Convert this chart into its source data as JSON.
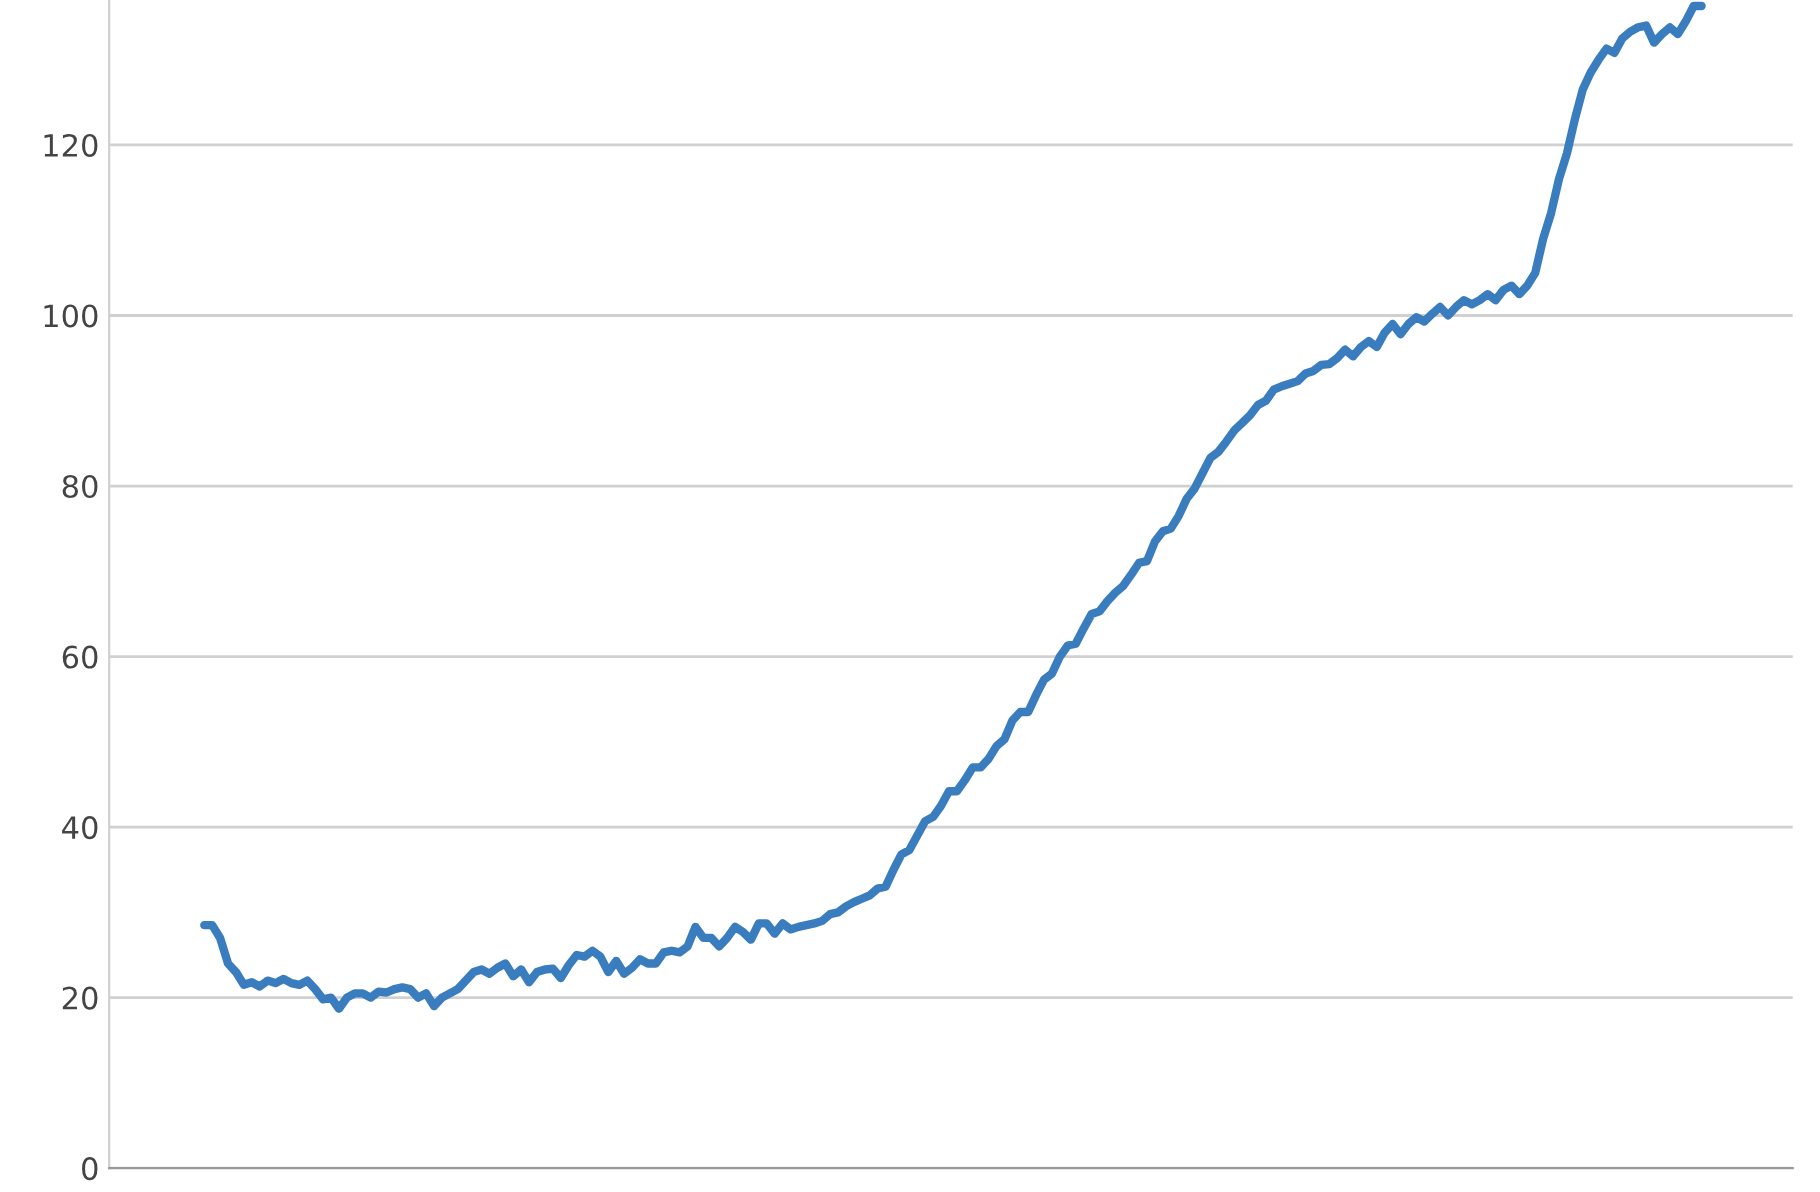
{
  "chart_data": {
    "type": "line",
    "categories": [
      null,
      null,
      null,
      null,
      null,
      null,
      null,
      null,
      null,
      null,
      null,
      null,
      null,
      null,
      null,
      null,
      null,
      null,
      null,
      null,
      null,
      null,
      null,
      null,
      null,
      null,
      null,
      null,
      null,
      null,
      null,
      null,
      null,
      null,
      null,
      null,
      null,
      null,
      null,
      null,
      null,
      null,
      null,
      null,
      null,
      null,
      null,
      null,
      null,
      null,
      null,
      null,
      null,
      null,
      null,
      null,
      null,
      null,
      null,
      null,
      null,
      null,
      null,
      null,
      null,
      null,
      null,
      null,
      null,
      null,
      null,
      null,
      null,
      null,
      null,
      null,
      null,
      null,
      null,
      null,
      null,
      null,
      null,
      null,
      null,
      null,
      null,
      null,
      null,
      null,
      null,
      null,
      null,
      null,
      null,
      null,
      null,
      null,
      null,
      null,
      null,
      null,
      null,
      null,
      null,
      null,
      null,
      null,
      null,
      null,
      null,
      null,
      null,
      null,
      null,
      null,
      null,
      null,
      null,
      null,
      null,
      null,
      null,
      null,
      null,
      null,
      null,
      null,
      null,
      null,
      null,
      null,
      null,
      null,
      null,
      null,
      null,
      null,
      null,
      null,
      null,
      null,
      null,
      null,
      null,
      null,
      null,
      null,
      null,
      null,
      null,
      null,
      null,
      null,
      null,
      null,
      null,
      null,
      null,
      null,
      null,
      null,
      null,
      null,
      null,
      null,
      null,
      null,
      null,
      null,
      null,
      null,
      null,
      null,
      null,
      null,
      null,
      null,
      null,
      null,
      null,
      null,
      null,
      null,
      null,
      null,
      null,
      null,
      null,
      null
    ],
    "series": [
      {
        "color": "#3a7dbf",
        "values": [
          28.5,
          28.5,
          27,
          24,
          23,
          21.5,
          21.8,
          21.3,
          22,
          21.7,
          22.2,
          21.7,
          21.5,
          22,
          21,
          19.8,
          20,
          18.7,
          20,
          20.5,
          20.5,
          20,
          20.7,
          20.6,
          21,
          21.2,
          21,
          20,
          20.5,
          19,
          20,
          20.5,
          21,
          22,
          23,
          23.3,
          22.8,
          23.5,
          24,
          22.5,
          23.3,
          21.8,
          23,
          23.3,
          23.4,
          22.3,
          23.8,
          25,
          24.8,
          25.5,
          24.8,
          23,
          24.3,
          22.8,
          23.5,
          24.5,
          24,
          24,
          25.3,
          25.5,
          25.3,
          26,
          28.3,
          27,
          27,
          26,
          27,
          28.3,
          27.7,
          26.8,
          28.7,
          28.7,
          27.5,
          28.7,
          28,
          28.3,
          28.5,
          28.7,
          29,
          29.8,
          30,
          30.7,
          31.2,
          31.6,
          32,
          32.8,
          33,
          35,
          36.8,
          37.3,
          39,
          40.7,
          41.2,
          42.5,
          44.2,
          44.2,
          45.5,
          47,
          47,
          48,
          49.5,
          50.3,
          52.5,
          53.5,
          53.5,
          55.5,
          57.3,
          58,
          60,
          61.3,
          61.5,
          63.3,
          65,
          65.3,
          66.5,
          67.5,
          68.3,
          69.6,
          71,
          71.2,
          73.5,
          74.7,
          75,
          76.5,
          78.5,
          79.7,
          81.5,
          83.3,
          84,
          85.2,
          86.5,
          87.4,
          88.3,
          89.5,
          90,
          91.3,
          91.7,
          92,
          92.3,
          93.2,
          93.5,
          94.2,
          94.3,
          95,
          96,
          95.2,
          96.3,
          97,
          96.3,
          98,
          99,
          97.8,
          99,
          99.8,
          99.3,
          100.2,
          101,
          100,
          101,
          101.8,
          101.3,
          101.8,
          102.5,
          101.8,
          103,
          103.5,
          102.5,
          103.5,
          105,
          109,
          112,
          116,
          119,
          123,
          126.5,
          128.5,
          130,
          131.3,
          130.8,
          132.5,
          133.3,
          133.8,
          134,
          132,
          133,
          133.8,
          133,
          134.5,
          136.3,
          136.3
        ]
      }
    ],
    "ylim": [
      0,
      137
    ],
    "yticks": [
      0,
      20,
      40,
      60,
      80,
      100,
      120
    ],
    "grid": "y",
    "tick_labels": "y"
  }
}
